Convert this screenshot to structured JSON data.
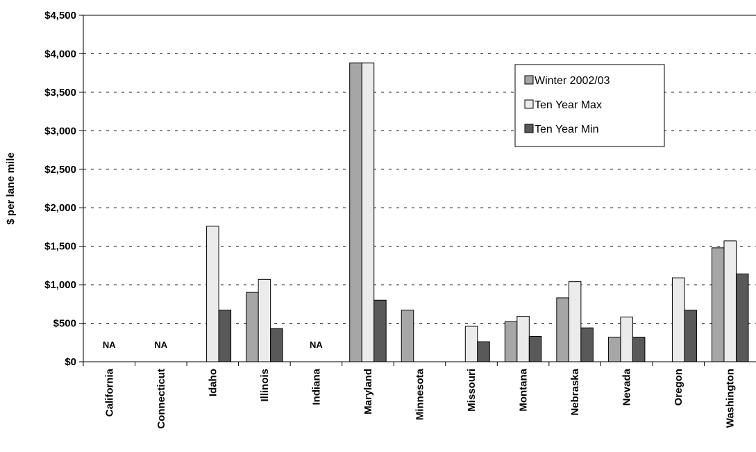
{
  "chart_data": {
    "type": "bar",
    "ylabel": "$ per lane mile",
    "ylim": [
      0,
      4500
    ],
    "ytick_step": 500,
    "ytick_labels": [
      "$0",
      "$500",
      "$1,000",
      "$1,500",
      "$2,000",
      "$2,500",
      "$3,000",
      "$3,500",
      "$4,000",
      "$4,500"
    ],
    "grid": "horizontal-dashed",
    "legend_position": "top-right",
    "categories": [
      "California",
      "Connecticut",
      "Idaho",
      "Illinois",
      "Indiana",
      "Maryland",
      "Minnesota",
      "Missouri",
      "Montana",
      "Nebraska",
      "Nevada",
      "Oregon",
      "Washington"
    ],
    "series": [
      {
        "name": "Winter 2002/03",
        "color": "#a6a6a6",
        "values": [
          null,
          null,
          null,
          900,
          null,
          3880,
          670,
          null,
          520,
          830,
          320,
          null,
          1480
        ]
      },
      {
        "name": "Ten Year Max",
        "color": "#ebebeb",
        "values": [
          null,
          null,
          1760,
          1070,
          null,
          3880,
          null,
          460,
          590,
          1040,
          580,
          1090,
          1570
        ]
      },
      {
        "name": "Ten Year Min",
        "color": "#595959",
        "values": [
          null,
          null,
          670,
          430,
          null,
          800,
          null,
          260,
          330,
          440,
          320,
          670,
          1140
        ]
      }
    ],
    "annotations": [
      {
        "category": "California",
        "text": "NA"
      },
      {
        "category": "Connecticut",
        "text": "NA"
      },
      {
        "category": "Indiana",
        "text": "NA"
      }
    ]
  }
}
